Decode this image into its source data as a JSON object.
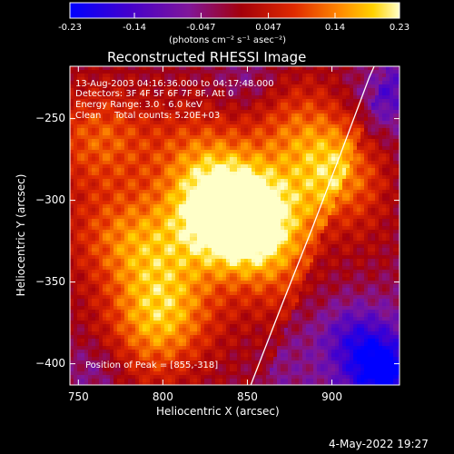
{
  "colorbar": {
    "tick_labels": [
      "-0.23",
      "-0.14",
      "-0.047",
      "0.047",
      "0.14",
      "0.23"
    ],
    "tick_values": [
      -0.23,
      -0.14,
      -0.047,
      0.047,
      0.14,
      0.23
    ],
    "range": [
      -0.23,
      0.23
    ],
    "units_label": "(photons cm⁻² s⁻¹ asec⁻²)"
  },
  "plot": {
    "title": "Reconstructed RHESSI Image",
    "xlabel": "Heliocentric X (arcsec)",
    "ylabel": "Heliocentric Y (arcsec)",
    "xlim": [
      745,
      940
    ],
    "ylim": [
      -413,
      -218
    ],
    "x_ticks": [
      750,
      800,
      850,
      900
    ],
    "y_ticks": [
      -250,
      -300,
      -350,
      -400
    ],
    "x_tick_labels": [
      "750",
      "800",
      "850",
      "900"
    ],
    "y_tick_labels": [
      "−250",
      "−300",
      "−350",
      "−400"
    ],
    "annotations": {
      "time_range": "13-Aug-2003 04:16:36.000 to 04:17:48.000",
      "detectors": "Detectors: 3F 4F 5F 6F 7F 8F, Att 0",
      "energy_range": "Energy Range: 3.0 - 6.0 keV",
      "method": "Clean",
      "total_counts": "Total counts: 5.20E+03",
      "peak_position": "Position of Peak = [855,-318]"
    },
    "limb_curve": [
      {
        "x": 852,
        "y": -413
      },
      {
        "x": 870,
        "y": -365
      },
      {
        "x": 888,
        "y": -318
      },
      {
        "x": 905,
        "y": -272
      },
      {
        "x": 922,
        "y": -225
      },
      {
        "x": 925,
        "y": -218
      }
    ]
  },
  "chart_data": {
    "type": "heatmap",
    "title": "Reconstructed RHESSI Image",
    "xlabel": "Heliocentric X (arcsec)",
    "ylabel": "Heliocentric Y (arcsec)",
    "xlim": [
      745,
      940
    ],
    "ylim": [
      -413,
      -218
    ],
    "colorscale_range": [
      -0.23,
      0.23
    ],
    "peak": {
      "x": 855,
      "y": -318
    },
    "hotspots": [
      {
        "x": 852,
        "y": -315,
        "value": 0.23
      },
      {
        "x": 835,
        "y": -303,
        "value": 0.2
      },
      {
        "x": 905,
        "y": -285,
        "value": 0.18
      },
      {
        "x": 800,
        "y": -368,
        "value": 0.16
      },
      {
        "x": 762,
        "y": -262,
        "value": 0.12
      },
      {
        "x": 795,
        "y": -330,
        "value": 0.1
      },
      {
        "x": 880,
        "y": -255,
        "value": 0.1
      },
      {
        "x": 820,
        "y": -270,
        "value": 0.09
      },
      {
        "x": 870,
        "y": -350,
        "value": 0.06
      },
      {
        "x": 770,
        "y": -320,
        "value": 0.08
      },
      {
        "x": 925,
        "y": -330,
        "value": 0.05
      },
      {
        "x": 790,
        "y": -395,
        "value": 0.05
      }
    ],
    "coldspots": [
      {
        "x": 930,
        "y": -405,
        "value": -0.2
      },
      {
        "x": 915,
        "y": -385,
        "value": -0.1
      },
      {
        "x": 760,
        "y": -405,
        "value": -0.06
      },
      {
        "x": 850,
        "y": -228,
        "value": -0.05
      },
      {
        "x": 930,
        "y": -235,
        "value": -0.08
      }
    ],
    "background_value": -0.01
  },
  "footer": {
    "date": "4-May-2022 19:27"
  }
}
